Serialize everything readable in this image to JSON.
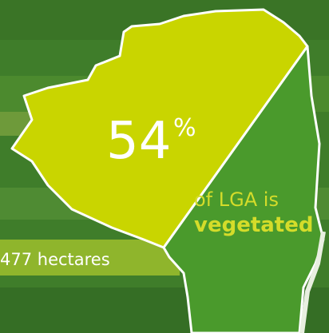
{
  "stat": {
    "number": "54",
    "unit": "%"
  },
  "caption": {
    "line1": "of LGA is",
    "line2": "vegetated"
  },
  "area": "477 hectares"
}
